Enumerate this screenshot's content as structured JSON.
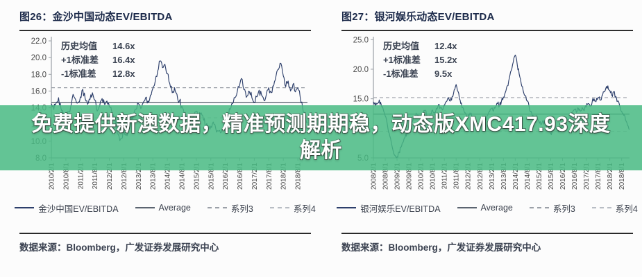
{
  "overlay": {
    "text": "免费提供新澳数据，精准预测期期稳，动态版XMC417.93深度解析",
    "background_color": "#48ba82",
    "text_color": "#ffffff"
  },
  "panels": [
    {
      "title": "图26：金沙中国动态EV/EBITDA",
      "stats": [
        {
          "label": "历史均值",
          "value": "14.6x"
        },
        {
          "label": "+1标准差",
          "value": "16.4x"
        },
        {
          "label": "-1标准差",
          "value": "12.8x"
        }
      ],
      "source": "数据来源：Bloomberg，广发证券发展研究中心"
    },
    {
      "title": "图27：银河娱乐动态EV/EBITDA",
      "stats": [
        {
          "label": "历史均值",
          "value": "12.4x"
        },
        {
          "label": "+1标准差",
          "value": "15.2x"
        },
        {
          "label": "-1标准差",
          "value": "9.5x"
        }
      ],
      "source": "数据来源：Bloomberg，广发证券发展研究中心"
    }
  ],
  "chart_data": [
    {
      "type": "line",
      "title": "金沙中国动态EV/EBITDA",
      "ylim": [
        8,
        22.5
      ],
      "yticks": [
        22.0,
        20.0,
        18.0,
        16.0,
        14.0,
        12.0,
        10.0,
        8.0
      ],
      "xticklabels": [
        "2010/2/1",
        "2010/8/1",
        "2011/2/1",
        "2011/8/1",
        "2012/2/1",
        "2012/8/1",
        "2013/2/1",
        "2013/8/1",
        "2014/2/1",
        "2014/8/1",
        "2015/2/1",
        "2015/8/1",
        "2016/2/1",
        "2016/8/1",
        "2017/2/1",
        "2017/8/1",
        "2018/2/1",
        "2018/8/1"
      ],
      "xtick_step_months": 6,
      "grid": false,
      "legend_position": "bottom",
      "mean": 14.6,
      "plus1sd": 16.4,
      "minus1sd": 12.8,
      "series": [
        {
          "name": "金沙中国EV/EBITDA",
          "kind": "data",
          "style": "solid",
          "color": "#2d3f6b",
          "values": [
            14.5,
            13.8,
            14.6,
            15.2,
            13.9,
            13.2,
            12.8,
            13.5,
            14.1,
            15.6,
            15.0,
            14.6,
            15.3,
            16.2,
            15.1,
            14.4,
            15.0,
            15.8,
            14.9,
            13.6,
            14.2,
            15.1,
            14.4,
            14.8,
            14.2,
            13.5,
            12.6,
            11.4,
            10.6,
            10.3,
            11.2,
            10.8,
            11.6,
            12.4,
            13.2,
            13.8,
            14.5,
            13.9,
            14.6,
            15.2,
            14.8,
            15.5,
            16.3,
            17.2,
            18.4,
            19.6,
            18.8,
            19.2,
            18.1,
            16.9,
            15.8,
            16.4,
            15.6,
            14.8,
            14.2,
            13.1,
            11.9,
            12.6,
            12.2,
            13.0,
            13.6,
            12.8,
            13.4,
            12.5,
            11.9,
            11.4,
            11.8,
            12.3,
            11.6,
            11.2,
            11.0,
            11.5,
            12.2,
            13.0,
            13.8,
            14.5,
            15.2,
            16.0,
            16.8,
            17.4,
            16.2,
            15.4,
            15.9,
            15.2,
            14.6,
            15.3,
            16.1,
            15.5,
            14.9,
            15.6,
            16.4,
            15.8,
            16.6,
            17.8,
            18.6,
            19.3,
            17.8,
            16.5,
            17.2,
            16.0,
            16.8,
            15.9,
            16.4,
            15.2,
            14.0,
            12.9,
            12.3
          ]
        },
        {
          "name": "Average",
          "kind": "constant",
          "style": "solid",
          "color": "#5b6470",
          "constant": 14.6
        },
        {
          "name": "系列3",
          "kind": "constant",
          "style": "dashed",
          "color": "#9ba0a8",
          "constant": 16.4
        },
        {
          "name": "系列4",
          "kind": "constant",
          "style": "dashed",
          "color": "#b8bdc4",
          "constant": 12.8
        }
      ]
    },
    {
      "type": "line",
      "title": "银河娱乐动态EV/EBITDA",
      "ylim": [
        5,
        25.5
      ],
      "yticks": [
        25.0,
        20.0,
        15.0,
        10.0,
        5.0
      ],
      "xticklabels": [
        "2008/2/1",
        "2008/8/1",
        "2009/2/1",
        "2009/8/1",
        "2010/2/1",
        "2010/8/1",
        "2011/2/1",
        "2011/8/1",
        "2012/2/1",
        "2012/8/1",
        "2013/2/1",
        "2013/8/1",
        "2014/2/1",
        "2014/8/1",
        "2015/2/1",
        "2015/8/1",
        "2016/2/1",
        "2016/8/1",
        "2017/2/1",
        "2017/8/1",
        "2018/2/1",
        "2018/8/1"
      ],
      "xtick_step_months": 6,
      "grid": false,
      "legend_position": "bottom",
      "mean": 12.4,
      "plus1sd": 15.2,
      "minus1sd": 9.5,
      "series": [
        {
          "name": "银河娱乐EV/EBITDA",
          "kind": "data",
          "style": "solid",
          "color": "#2d3f6b",
          "values": [
            14.5,
            13.8,
            14.2,
            14.8,
            13.9,
            13.2,
            12.1,
            10.8,
            9.2,
            7.8,
            6.2,
            5.4,
            5.2,
            6.0,
            6.8,
            7.6,
            8.4,
            9.2,
            10.0,
            10.7,
            11.3,
            11.9,
            12.4,
            12.1,
            11.7,
            12.4,
            13.0,
            12.3,
            11.8,
            12.5,
            13.1,
            12.7,
            13.4,
            14.0,
            13.5,
            13.1,
            13.8,
            14.5,
            15.2,
            14.6,
            15.4,
            16.5,
            17.4,
            16.2,
            14.8,
            13.5,
            12.9,
            12.4,
            11.8,
            12.6,
            11.9,
            11.2,
            10.4,
            9.8,
            10.6,
            11.2,
            10.8,
            11.5,
            12.2,
            12.8,
            13.4,
            12.9,
            13.6,
            14.2,
            13.8,
            14.6,
            15.3,
            16.1,
            17.2,
            18.5,
            19.8,
            21.2,
            22.4,
            20.8,
            19.2,
            17.6,
            16.4,
            15.5,
            14.6,
            13.8,
            12.9,
            12.2,
            11.6,
            11.9,
            11.2,
            10.6,
            11.3,
            10.8,
            10.2,
            9.6,
            9.1,
            9.8,
            10.4,
            9.9,
            9.4,
            9.8,
            10.5,
            11.2,
            11.8,
            11.3,
            12.0,
            12.6,
            13.2,
            12.7,
            13.4,
            12.9,
            13.5,
            13.0,
            13.6,
            14.2,
            13.7,
            14.4,
            15.0,
            14.5,
            15.2,
            14.8,
            15.5,
            16.2,
            16.8,
            17.2,
            16.4,
            15.6,
            16.2,
            15.4,
            14.6,
            13.8,
            12.9,
            12.2,
            11.4,
            10.5,
            9.8
          ]
        },
        {
          "name": "Average",
          "kind": "constant",
          "style": "solid",
          "color": "#5b6470",
          "constant": 12.4
        },
        {
          "name": "系列3",
          "kind": "constant",
          "style": "dashed",
          "color": "#9ba0a8",
          "constant": 15.2
        },
        {
          "name": "系列4",
          "kind": "constant",
          "style": "dashed",
          "color": "#b8bdc4",
          "constant": 9.5
        }
      ]
    }
  ]
}
